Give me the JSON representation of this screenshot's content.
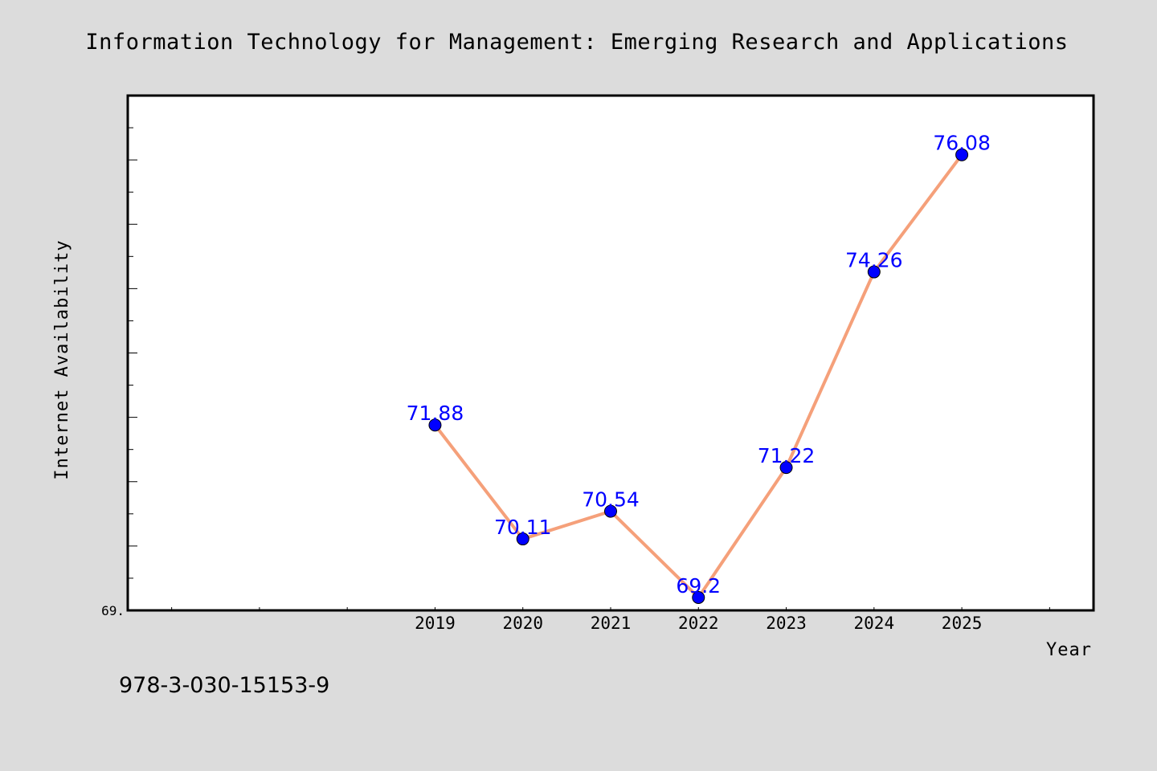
{
  "chart_data": {
    "type": "line",
    "title": "Information Technology for Management: Emerging Research and Applications",
    "xlabel": "Year",
    "ylabel": "Internet Availability",
    "x": [
      "2019",
      "2020",
      "2021",
      "2022",
      "2023",
      "2024",
      "2025"
    ],
    "y": [
      71.88,
      70.11,
      70.54,
      69.2,
      71.22,
      74.26,
      76.08
    ],
    "value_labels": [
      "71.88",
      "70.11",
      "70.54",
      "69.2",
      "71.22",
      "74.26",
      "76.08"
    ],
    "ytick_labels": [
      "69."
    ],
    "xlim": [
      2015.5,
      2026.5
    ],
    "ylim": [
      69.0,
      77.0
    ],
    "grid": false,
    "legend": "none",
    "line_color": "#f5a07a",
    "marker_color": "#0000ff",
    "label_color": "#0000ff"
  },
  "footer_text": "978-3-030-15153-9"
}
